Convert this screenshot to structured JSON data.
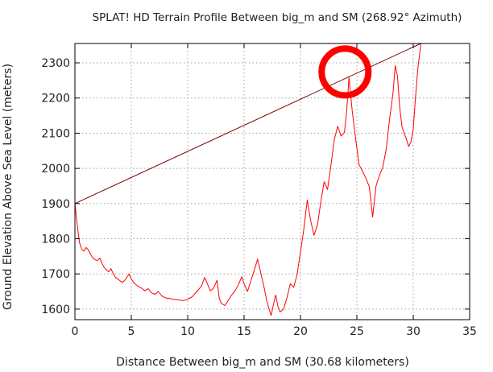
{
  "chart_data": {
    "type": "line",
    "title": "SPLAT! HD Terrain Profile Between big_m and SM (268.92° Azimuth)",
    "xlabel": "Distance Between big_m and SM (30.68 kilometers)",
    "ylabel": "Ground Elevation Above Sea Level (meters)",
    "xlim": [
      0,
      35
    ],
    "ylim": [
      1570,
      2355
    ],
    "xticks": [
      "0",
      "5",
      "10",
      "15",
      "20",
      "25",
      "30",
      "35"
    ],
    "yticks": [
      "1600",
      "1700",
      "1800",
      "1900",
      "2000",
      "2100",
      "2200",
      "2300"
    ],
    "grid": true,
    "series": [
      {
        "color": "#ff0000",
        "x": [
          0.0,
          0.2,
          0.4,
          0.6,
          0.8,
          1.0,
          1.2,
          1.4,
          1.6,
          1.8,
          2.0,
          2.2,
          2.4,
          2.6,
          2.8,
          3.0,
          3.2,
          3.4,
          3.6,
          3.8,
          4.0,
          4.2,
          4.4,
          4.6,
          4.8,
          5.0,
          5.3,
          5.6,
          5.9,
          6.2,
          6.5,
          6.8,
          7.1,
          7.4,
          7.7,
          8.0,
          8.4,
          8.8,
          9.2,
          9.6,
          10.0,
          10.4,
          10.8,
          11.2,
          11.5,
          11.8,
          12.0,
          12.3,
          12.6,
          12.8,
          13.0,
          13.3,
          13.6,
          13.9,
          14.2,
          14.5,
          14.8,
          15.0,
          15.3,
          15.6,
          15.9,
          16.2,
          16.5,
          16.8,
          17.0,
          17.2,
          17.4,
          17.6,
          17.8,
          18.0,
          18.2,
          18.5,
          18.8,
          19.1,
          19.4,
          19.7,
          20.0,
          20.3,
          20.6,
          20.9,
          21.2,
          21.5,
          21.8,
          22.1,
          22.4,
          22.7,
          23.0,
          23.3,
          23.6,
          23.9,
          24.1,
          24.3,
          24.6,
          24.9,
          25.2,
          25.5,
          25.8,
          26.1,
          26.4,
          26.7,
          27.0,
          27.3,
          27.6,
          27.9,
          28.2,
          28.4,
          28.6,
          28.8,
          29.0,
          29.2,
          29.4,
          29.6,
          29.8,
          30.0,
          30.2,
          30.4,
          30.68
        ],
        "values": [
          1900,
          1840,
          1790,
          1770,
          1765,
          1775,
          1768,
          1755,
          1745,
          1740,
          1738,
          1745,
          1730,
          1718,
          1712,
          1706,
          1715,
          1700,
          1690,
          1686,
          1680,
          1676,
          1681,
          1690,
          1700,
          1685,
          1672,
          1665,
          1660,
          1652,
          1658,
          1646,
          1642,
          1650,
          1638,
          1632,
          1630,
          1628,
          1626,
          1624,
          1628,
          1635,
          1650,
          1664,
          1690,
          1668,
          1652,
          1660,
          1682,
          1630,
          1616,
          1610,
          1625,
          1640,
          1652,
          1670,
          1692,
          1672,
          1650,
          1680,
          1710,
          1742,
          1700,
          1658,
          1625,
          1602,
          1582,
          1612,
          1640,
          1608,
          1592,
          1600,
          1632,
          1672,
          1662,
          1698,
          1762,
          1828,
          1910,
          1852,
          1810,
          1838,
          1904,
          1962,
          1940,
          2008,
          2082,
          2120,
          2092,
          2102,
          2165,
          2258,
          2160,
          2082,
          2010,
          1992,
          1972,
          1948,
          1862,
          1950,
          1980,
          2004,
          2054,
          2140,
          2212,
          2292,
          2262,
          2174,
          2118,
          2100,
          2082,
          2062,
          2076,
          2112,
          2202,
          2282,
          2355
        ]
      },
      {
        "color": "#7a0000",
        "x": [
          0.0,
          30.68
        ],
        "values": [
          1900,
          2355
        ]
      }
    ],
    "annotations": [
      {
        "type": "circle",
        "x": 23.95,
        "y": 2274,
        "color": "#ff0000"
      }
    ]
  }
}
